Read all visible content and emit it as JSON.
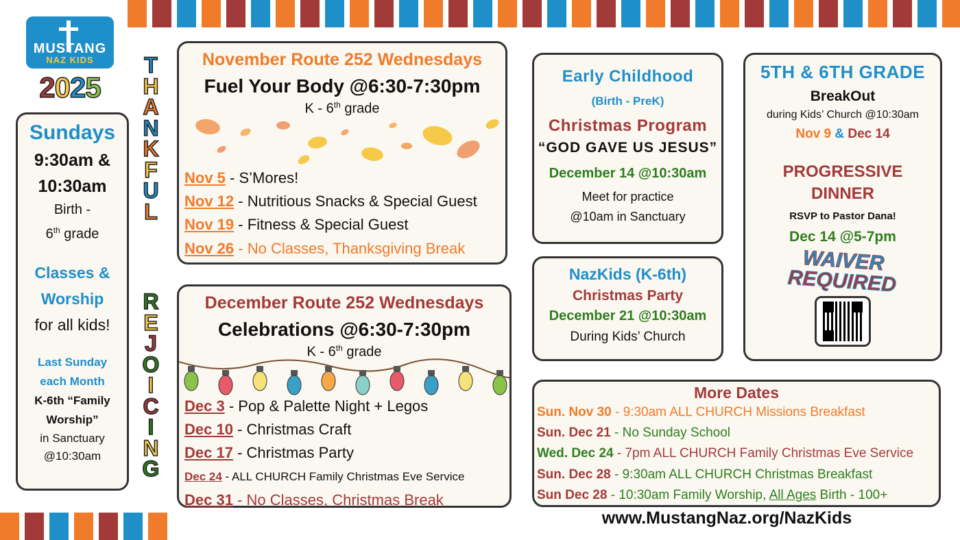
{
  "colors": {
    "blue": "#1f8fc9",
    "orange": "#f07b2a",
    "red": "#a33a3a",
    "green": "#2e7d1e",
    "yellow": "#f7c948",
    "border": "#333333",
    "box_bg": "#fbf8f1"
  },
  "stripes": {
    "pattern": [
      "#f07b2a",
      "#a33a3a",
      "#1f8fc9"
    ],
    "top_count": 34,
    "bottom_count": 7
  },
  "logo": {
    "brand": "MUSTANG",
    "sub": "NAZ KIDS",
    "year_digits": [
      "2",
      "0",
      "2",
      "5"
    ],
    "year_colors": [
      "#a33a3a",
      "#f7c948",
      "#1f8fc9",
      "#8bc34a"
    ],
    "icon": "cross-icon"
  },
  "thankful": {
    "letters": [
      "T",
      "H",
      "A",
      "N",
      "K",
      "F",
      "U",
      "L"
    ],
    "colors": [
      "#1f8fc9",
      "#f7c948",
      "#f07b2a",
      "#1f8fc9",
      "#f07b2a",
      "#f7c948",
      "#1f8fc9",
      "#f07b2a"
    ]
  },
  "rejoicing": {
    "letters": [
      "R",
      "E",
      "J",
      "O",
      "I",
      "C",
      "I",
      "N",
      "G"
    ],
    "colors": [
      "#2e7d1e",
      "#f7c948",
      "#a33a3a",
      "#2e7d1e",
      "#f7c948",
      "#a33a3a",
      "#2e7d1e",
      "#f7c948",
      "#2e7d1e"
    ]
  },
  "sundays": {
    "title": "Sundays",
    "times": [
      "9:30am &",
      "10:30am"
    ],
    "age_line1": "Birth -",
    "age_num": "6",
    "age_sup": "th",
    "age_rest": " grade",
    "classes": [
      "Classes &",
      "Worship"
    ],
    "for_all": "for all kids!",
    "last_sunday": [
      "Last Sunday",
      "each Month"
    ],
    "family": [
      "K-6th “Family",
      "Worship”"
    ],
    "location": [
      "in Sanctuary",
      "@10:30am"
    ]
  },
  "november": {
    "header": "November Route 252 Wednesdays",
    "subtitle": "Fuel Your Body @6:30-7:30pm",
    "grade_prefix": "K - 6",
    "grade_sup": "th",
    "grade_suffix": " grade",
    "decor_icon": "autumn-leaves-icon",
    "events": [
      {
        "date": "Nov 5",
        "desc": " -  S’Mores!",
        "highlight": false
      },
      {
        "date": "Nov 12",
        "desc": " - Nutritious Snacks & Special Guest",
        "highlight": false
      },
      {
        "date": "Nov 19",
        "desc": " - Fitness & Special Guest",
        "highlight": false
      },
      {
        "date": "Nov 26",
        "desc": " - No Classes, Thanksgiving Break",
        "highlight": true
      }
    ]
  },
  "december": {
    "header": "December Route 252 Wednesdays",
    "subtitle": "Celebrations @6:30-7:30pm",
    "grade_prefix": "K - 6",
    "grade_sup": "th",
    "grade_suffix": " grade",
    "decor_icon": "christmas-lights-icon",
    "bulb_colors": [
      "#8bc34a",
      "#e85a6a",
      "#f7e27a",
      "#3aa0c8",
      "#f7a94a",
      "#8bd0c8",
      "#e85a6a",
      "#3aa0c8",
      "#f7e27a",
      "#8bc34a"
    ],
    "events": [
      {
        "date": "Dec 3",
        "desc": " -  Pop & Palette Night + Legos",
        "highlight": false,
        "small": false
      },
      {
        "date": "Dec 10",
        "desc": " - Christmas Craft",
        "highlight": false,
        "small": false
      },
      {
        "date": "Dec 17",
        "desc": " - Christmas Party",
        "highlight": false,
        "small": false
      },
      {
        "date": "Dec 24",
        "desc": " - ALL CHURCH Family Christmas Eve Service",
        "highlight": false,
        "small": true
      },
      {
        "date": "Dec 31",
        "desc": " - No Classes, Christmas Break",
        "highlight": true,
        "small": false
      }
    ]
  },
  "early": {
    "title": "Early Childhood",
    "ages": "(Birth - PreK)",
    "program": "Christmas Program",
    "theme": "“GOD GAVE US JESUS”",
    "date": "December 14 @10:30am",
    "practice": [
      "Meet for practice",
      "@10am in Sanctuary"
    ]
  },
  "nazkids": {
    "title": "NazKids (K-6th)",
    "event": "Christmas Party",
    "date": "December 21 @10:30am",
    "note": "During Kids’ Church"
  },
  "grades": {
    "title": "5TH & 6TH GRADE",
    "breakout": "BreakOut",
    "during": "during Kids’ Church @10:30am",
    "date1": "Nov 9",
    "amp": " & ",
    "date2": "Dec 14",
    "dinner": [
      "PROGRESSIVE",
      "DINNER"
    ],
    "rsvp": "RSVP to Pastor Dana!",
    "dinner_date": "Dec 14 @5-7pm",
    "waiver": [
      "WAIVER",
      "REQUIRED"
    ],
    "qr_icon": "qr-code-icon"
  },
  "more": {
    "title": "More Dates",
    "items": [
      {
        "label": "Sun. Nov 30",
        "text": " - 9:30am ALL CHURCH Missions Breakfast",
        "label_color": "#f07b2a",
        "text_color": "#f07b2a",
        "u": ""
      },
      {
        "label": "Sun. Dec 21",
        "text": " - No Sunday School",
        "label_color": "#a33a3a",
        "text_color": "#2e7d1e",
        "u": ""
      },
      {
        "label": "Wed. Dec 24",
        "text": " - 7pm ALL CHURCH Family Christmas Eve Service",
        "label_color": "#2e7d1e",
        "text_color": "#a33a3a",
        "u": ""
      },
      {
        "label": "Sun. Dec 28",
        "text": " - 9:30am ALL CHURCH Christmas Breakfast",
        "label_color": "#a33a3a",
        "text_color": "#2e7d1e",
        "u": ""
      },
      {
        "label": "Sun Dec 28",
        "text": " - 10:30am Family Worship, ",
        "label_color": "#a33a3a",
        "text_color": "#2e7d1e",
        "u": "All Ages",
        "after": " Birth - 100+"
      }
    ]
  },
  "website": "www.MustangNaz.org/NazKids"
}
